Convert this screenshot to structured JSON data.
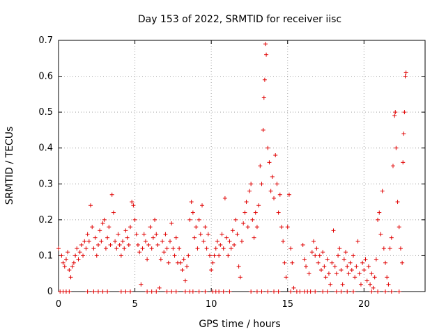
{
  "chart_data": {
    "type": "scatter",
    "title": "Day 153 of 2022, SRMTID for receiver iisc",
    "xlabel": "GPS time / hours",
    "ylabel": "SRMTID / TECUs",
    "xlim": [
      0,
      24
    ],
    "ylim": [
      0,
      0.7
    ],
    "grid": true,
    "marker": "+",
    "color": "#e00000",
    "xticks": [
      0,
      5,
      10,
      15,
      20
    ],
    "yticks": [
      0,
      0.1,
      0.2,
      0.3,
      0.4,
      0.5,
      0.6,
      0.7
    ],
    "xtick_labels": [
      "0",
      "5",
      "10",
      "15",
      "20"
    ],
    "ytick_labels": [
      "0",
      "0.1",
      "0.2",
      "0.3",
      "0.4",
      "0.5",
      "0.6",
      "0.7"
    ],
    "series": [
      {
        "name": "SRMTID",
        "points": [
          [
            0.0,
            0.12
          ],
          [
            0.2,
            0.1
          ],
          [
            0.3,
            0.08
          ],
          [
            0.4,
            0.07
          ],
          [
            0.5,
            0.09
          ],
          [
            0.6,
            0.11
          ],
          [
            0.7,
            0.06
          ],
          [
            0.8,
            0.04
          ],
          [
            0.9,
            0.07
          ],
          [
            1.0,
            0.08
          ],
          [
            1.1,
            0.1
          ],
          [
            1.2,
            0.12
          ],
          [
            1.3,
            0.09
          ],
          [
            1.4,
            0.11
          ],
          [
            1.5,
            0.13
          ],
          [
            1.6,
            0.1
          ],
          [
            1.7,
            0.14
          ],
          [
            1.8,
            0.12
          ],
          [
            1.9,
            0.16
          ],
          [
            2.0,
            0.14
          ],
          [
            2.1,
            0.24
          ],
          [
            2.2,
            0.18
          ],
          [
            2.3,
            0.12
          ],
          [
            2.4,
            0.15
          ],
          [
            2.5,
            0.1
          ],
          [
            2.6,
            0.13
          ],
          [
            2.7,
            0.17
          ],
          [
            2.8,
            0.14
          ],
          [
            2.9,
            0.19
          ],
          [
            3.0,
            0.2
          ],
          [
            3.1,
            0.12
          ],
          [
            3.2,
            0.15
          ],
          [
            3.3,
            0.18
          ],
          [
            3.4,
            0.13
          ],
          [
            3.5,
            0.27
          ],
          [
            3.6,
            0.22
          ],
          [
            3.7,
            0.14
          ],
          [
            3.8,
            0.12
          ],
          [
            3.9,
            0.16
          ],
          [
            4.0,
            0.13
          ],
          [
            4.1,
            0.1
          ],
          [
            4.2,
            0.14
          ],
          [
            4.3,
            0.12
          ],
          [
            4.4,
            0.17
          ],
          [
            4.5,
            0.15
          ],
          [
            4.6,
            0.13
          ],
          [
            4.7,
            0.18
          ],
          [
            4.8,
            0.25
          ],
          [
            4.9,
            0.24
          ],
          [
            5.0,
            0.2
          ],
          [
            5.1,
            0.16
          ],
          [
            5.2,
            0.13
          ],
          [
            5.3,
            0.11
          ],
          [
            5.4,
            0.02
          ],
          [
            5.5,
            0.12
          ],
          [
            5.6,
            0.16
          ],
          [
            5.7,
            0.14
          ],
          [
            5.8,
            0.09
          ],
          [
            5.9,
            0.13
          ],
          [
            6.0,
            0.18
          ],
          [
            6.1,
            0.12
          ],
          [
            6.2,
            0.15
          ],
          [
            6.3,
            0.2
          ],
          [
            6.4,
            0.16
          ],
          [
            6.5,
            0.13
          ],
          [
            6.6,
            0.01
          ],
          [
            6.7,
            0.09
          ],
          [
            6.8,
            0.14
          ],
          [
            6.9,
            0.11
          ],
          [
            7.0,
            0.16
          ],
          [
            7.1,
            0.12
          ],
          [
            7.2,
            0.08
          ],
          [
            7.3,
            0.14
          ],
          [
            7.4,
            0.19
          ],
          [
            7.5,
            0.12
          ],
          [
            7.6,
            0.1
          ],
          [
            7.7,
            0.15
          ],
          [
            7.8,
            0.08
          ],
          [
            7.9,
            0.12
          ],
          [
            8.0,
            0.08
          ],
          [
            8.1,
            0.06
          ],
          [
            8.2,
            0.09
          ],
          [
            8.3,
            0.03
          ],
          [
            8.4,
            0.07
          ],
          [
            8.5,
            0.1
          ],
          [
            8.6,
            0.2
          ],
          [
            8.7,
            0.25
          ],
          [
            8.8,
            0.22
          ],
          [
            8.9,
            0.15
          ],
          [
            9.0,
            0.18
          ],
          [
            9.1,
            0.12
          ],
          [
            9.2,
            0.2
          ],
          [
            9.3,
            0.16
          ],
          [
            9.4,
            0.24
          ],
          [
            9.5,
            0.14
          ],
          [
            9.6,
            0.18
          ],
          [
            9.7,
            0.12
          ],
          [
            9.8,
            0.16
          ],
          [
            9.9,
            0.1
          ],
          [
            10.0,
            0.06
          ],
          [
            10.1,
            0.08
          ],
          [
            10.2,
            0.1
          ],
          [
            10.3,
            0.12
          ],
          [
            10.4,
            0.14
          ],
          [
            10.5,
            0.1
          ],
          [
            10.6,
            0.13
          ],
          [
            10.7,
            0.16
          ],
          [
            10.8,
            0.12
          ],
          [
            10.9,
            0.26
          ],
          [
            11.0,
            0.15
          ],
          [
            11.1,
            0.1
          ],
          [
            11.2,
            0.14
          ],
          [
            11.3,
            0.12
          ],
          [
            11.4,
            0.17
          ],
          [
            11.5,
            0.13
          ],
          [
            11.6,
            0.2
          ],
          [
            11.7,
            0.16
          ],
          [
            11.8,
            0.07
          ],
          [
            11.9,
            0.04
          ],
          [
            12.0,
            0.14
          ],
          [
            12.1,
            0.19
          ],
          [
            12.2,
            0.22
          ],
          [
            12.3,
            0.25
          ],
          [
            12.4,
            0.18
          ],
          [
            12.5,
            0.28
          ],
          [
            12.6,
            0.3
          ],
          [
            12.7,
            0.2
          ],
          [
            12.8,
            0.15
          ],
          [
            12.9,
            0.22
          ],
          [
            13.0,
            0.18
          ],
          [
            13.1,
            0.24
          ],
          [
            13.2,
            0.35
          ],
          [
            13.3,
            0.3
          ],
          [
            13.4,
            0.45
          ],
          [
            13.45,
            0.54
          ],
          [
            13.5,
            0.59
          ],
          [
            13.55,
            0.69
          ],
          [
            13.6,
            0.66
          ],
          [
            13.7,
            0.4
          ],
          [
            13.8,
            0.36
          ],
          [
            13.9,
            0.28
          ],
          [
            14.0,
            0.32
          ],
          [
            14.1,
            0.26
          ],
          [
            14.2,
            0.38
          ],
          [
            14.3,
            0.3
          ],
          [
            14.4,
            0.22
          ],
          [
            14.5,
            0.27
          ],
          [
            14.6,
            0.18
          ],
          [
            14.7,
            0.14
          ],
          [
            14.8,
            0.08
          ],
          [
            14.9,
            0.04
          ],
          [
            15.0,
            0.18
          ],
          [
            15.1,
            0.27
          ],
          [
            15.2,
            0.12
          ],
          [
            15.3,
            0.08
          ],
          [
            15.4,
            0.01
          ],
          [
            16.0,
            0.13
          ],
          [
            16.1,
            0.09
          ],
          [
            16.2,
            0.07
          ],
          [
            16.4,
            0.05
          ],
          [
            16.6,
            0.11
          ],
          [
            16.7,
            0.14
          ],
          [
            16.8,
            0.1
          ],
          [
            16.9,
            0.12
          ],
          [
            17.0,
            0.08
          ],
          [
            17.1,
            0.1
          ],
          [
            17.2,
            0.06
          ],
          [
            17.3,
            0.11
          ],
          [
            17.4,
            0.07
          ],
          [
            17.5,
            0.04
          ],
          [
            17.6,
            0.09
          ],
          [
            17.7,
            0.05
          ],
          [
            17.8,
            0.02
          ],
          [
            17.9,
            0.08
          ],
          [
            18.0,
            0.17
          ],
          [
            18.1,
            0.07
          ],
          [
            18.2,
            0.05
          ],
          [
            18.3,
            0.1
          ],
          [
            18.4,
            0.12
          ],
          [
            18.5,
            0.06
          ],
          [
            18.6,
            0.02
          ],
          [
            18.7,
            0.09
          ],
          [
            18.8,
            0.11
          ],
          [
            18.9,
            0.07
          ],
          [
            19.0,
            0.05
          ],
          [
            19.1,
            0.08
          ],
          [
            19.2,
            0.06
          ],
          [
            19.3,
            0.1
          ],
          [
            19.4,
            0.04
          ],
          [
            19.5,
            0.07
          ],
          [
            19.6,
            0.14
          ],
          [
            19.7,
            0.05
          ],
          [
            19.8,
            0.02
          ],
          [
            19.9,
            0.08
          ],
          [
            20.0,
            0.06
          ],
          [
            20.1,
            0.09
          ],
          [
            20.2,
            0.03
          ],
          [
            20.3,
            0.07
          ],
          [
            20.4,
            0.02
          ],
          [
            20.5,
            0.05
          ],
          [
            20.6,
            0.01
          ],
          [
            20.7,
            0.04
          ],
          [
            20.8,
            0.09
          ],
          [
            20.9,
            0.2
          ],
          [
            21.0,
            0.22
          ],
          [
            21.1,
            0.16
          ],
          [
            21.2,
            0.28
          ],
          [
            21.3,
            0.12
          ],
          [
            21.4,
            0.08
          ],
          [
            21.5,
            0.04
          ],
          [
            21.6,
            0.02
          ],
          [
            21.7,
            0.12
          ],
          [
            21.8,
            0.15
          ],
          [
            21.9,
            0.35
          ],
          [
            22.0,
            0.49
          ],
          [
            22.05,
            0.5
          ],
          [
            22.1,
            0.4
          ],
          [
            22.2,
            0.25
          ],
          [
            22.3,
            0.18
          ],
          [
            22.4,
            0.12
          ],
          [
            22.5,
            0.08
          ],
          [
            22.55,
            0.36
          ],
          [
            22.6,
            0.44
          ],
          [
            22.65,
            0.5
          ],
          [
            22.7,
            0.6
          ],
          [
            22.75,
            0.61
          ]
        ],
        "zeros_x": [
          0.1,
          0.3,
          0.5,
          0.7,
          1.9,
          2.3,
          2.6,
          2.9,
          3.2,
          4.1,
          4.4,
          4.7,
          5.8,
          6.1,
          6.4,
          7.1,
          7.4,
          7.7,
          8.3,
          8.6,
          8.8,
          9.2,
          9.6,
          10.1,
          10.3,
          10.5,
          10.8,
          11.2,
          12.6,
          13.0,
          13.3,
          13.7,
          14.1,
          14.4,
          15.2,
          15.6,
          15.8,
          16.1,
          16.3,
          16.5,
          16.8,
          17.3,
          17.6,
          18.2,
          18.5,
          18.9,
          19.3,
          20.5,
          20.9,
          21.4,
          21.8,
          22.3
        ]
      }
    ]
  }
}
